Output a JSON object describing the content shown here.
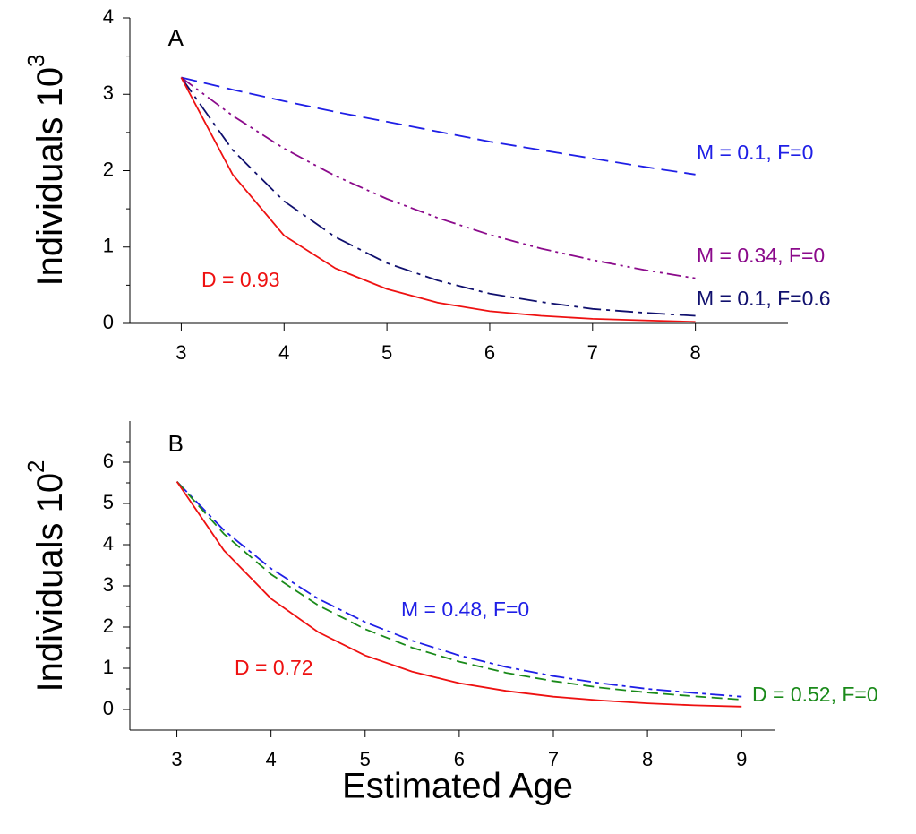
{
  "chart_data": [
    {
      "type": "line",
      "panel_label": "A",
      "ylabel": "Individuals 10",
      "ylabel_exponent": "3",
      "x": [
        3,
        3.5,
        4,
        4.5,
        5,
        5.5,
        6,
        6.5,
        7,
        7.5,
        8
      ],
      "xlim": [
        2.5,
        8.9
      ],
      "xticks": [
        3,
        4,
        5,
        6,
        7,
        8
      ],
      "ylim": [
        0,
        4
      ],
      "yticks": [
        0,
        1,
        2,
        3,
        4
      ],
      "yminorticks": [
        0.5,
        1.5,
        2.5,
        3.5
      ],
      "series": [
        {
          "name": "M = 0.1, F=0",
          "color": "#1f1fe6",
          "values": [
            3.22,
            3.06,
            2.91,
            2.77,
            2.64,
            2.51,
            2.38,
            2.27,
            2.16,
            2.05,
            1.95
          ]
        },
        {
          "name": "M = 0.34, F=0",
          "color": "#8b0a8b",
          "values": [
            3.22,
            2.72,
            2.29,
            1.93,
            1.63,
            1.38,
            1.16,
            0.98,
            0.83,
            0.7,
            0.59
          ]
        },
        {
          "name": "M = 0.1, F=0.6",
          "color": "#10106e",
          "values": [
            3.22,
            2.27,
            1.6,
            1.13,
            0.79,
            0.56,
            0.39,
            0.28,
            0.19,
            0.14,
            0.1
          ]
        },
        {
          "name": "D = 0.93",
          "color": "#ee1111",
          "values": [
            3.22,
            1.95,
            1.15,
            0.72,
            0.45,
            0.27,
            0.16,
            0.1,
            0.06,
            0.04,
            0.02
          ]
        }
      ]
    },
    {
      "type": "line",
      "panel_label": "B",
      "ylabel": "Individuals 10",
      "ylabel_exponent": "2",
      "xlabel": "Estimated Age",
      "x": [
        3,
        3.5,
        4,
        4.5,
        5,
        5.5,
        6,
        6.5,
        7,
        7.5,
        8,
        8.5,
        9
      ],
      "xlim": [
        2.5,
        9.35
      ],
      "xticks": [
        3,
        4,
        5,
        6,
        7,
        8,
        9
      ],
      "ylim": [
        -0.5,
        7
      ],
      "yticks": [
        0,
        1,
        2,
        3,
        4,
        5,
        6
      ],
      "yminorticks": [
        0.5,
        1.5,
        2.5,
        3.5,
        4.5,
        5.5,
        6.5
      ],
      "series": [
        {
          "name": "M = 0.48, F=0",
          "color": "#1f1fe6",
          "values": [
            5.53,
            4.35,
            3.42,
            2.69,
            2.12,
            1.67,
            1.31,
            1.03,
            0.81,
            0.64,
            0.5,
            0.4,
            0.31
          ]
        },
        {
          "name": "D = 0.52, F=0",
          "color": "#1a8a1a",
          "values": [
            5.53,
            4.26,
            3.28,
            2.53,
            1.95,
            1.5,
            1.16,
            0.89,
            0.69,
            0.53,
            0.41,
            0.32,
            0.24
          ]
        },
        {
          "name": "D = 0.72",
          "color": "#ee1111",
          "values": [
            5.53,
            3.86,
            2.69,
            1.88,
            1.31,
            0.92,
            0.64,
            0.45,
            0.31,
            0.22,
            0.15,
            0.1,
            0.07
          ]
        }
      ]
    }
  ]
}
